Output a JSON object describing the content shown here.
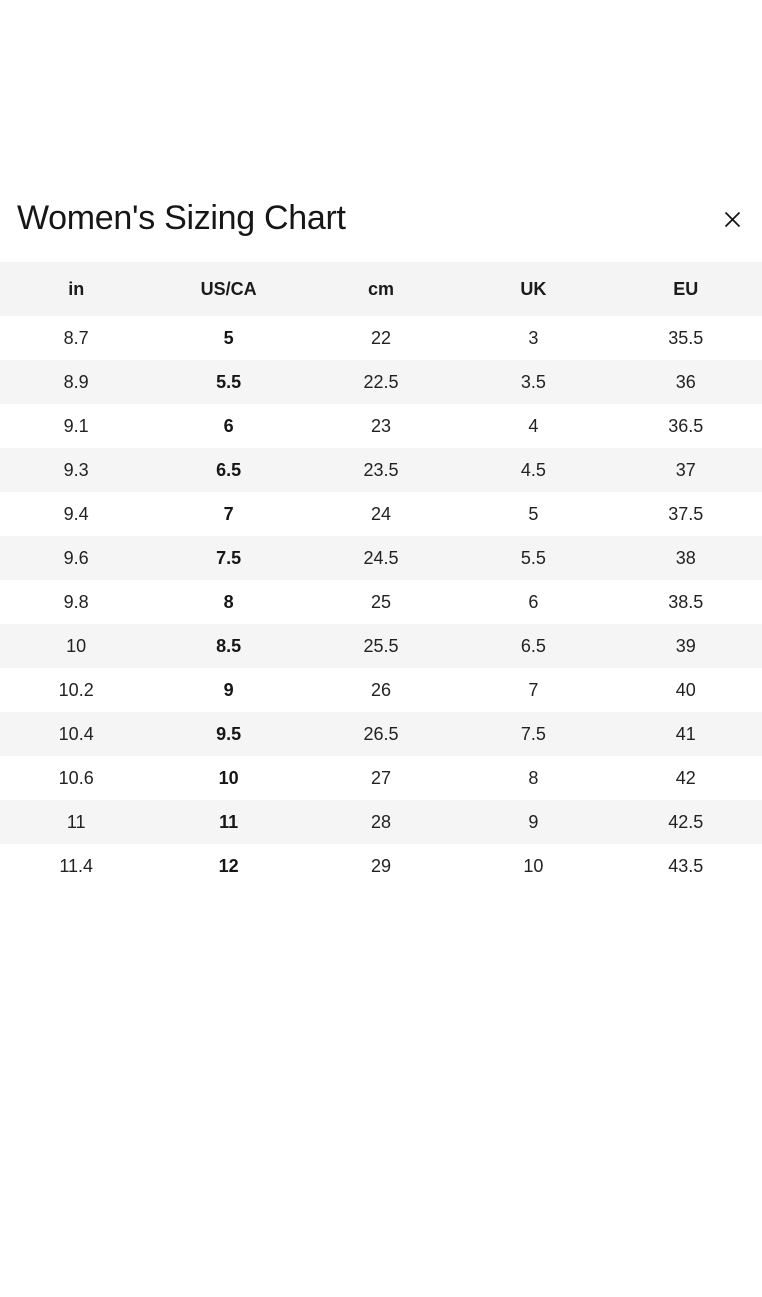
{
  "modal": {
    "title": "Women's Sizing Chart"
  },
  "table": {
    "columns": [
      "in",
      "US/CA",
      "cm",
      "UK",
      "EU"
    ],
    "bold_column_index": 1,
    "rows": [
      [
        "8.7",
        "5",
        "22",
        "3",
        "35.5"
      ],
      [
        "8.9",
        "5.5",
        "22.5",
        "3.5",
        "36"
      ],
      [
        "9.1",
        "6",
        "23",
        "4",
        "36.5"
      ],
      [
        "9.3",
        "6.5",
        "23.5",
        "4.5",
        "37"
      ],
      [
        "9.4",
        "7",
        "24",
        "5",
        "37.5"
      ],
      [
        "9.6",
        "7.5",
        "24.5",
        "5.5",
        "38"
      ],
      [
        "9.8",
        "8",
        "25",
        "6",
        "38.5"
      ],
      [
        "10",
        "8.5",
        "25.5",
        "6.5",
        "39"
      ],
      [
        "10.2",
        "9",
        "26",
        "7",
        "40"
      ],
      [
        "10.4",
        "9.5",
        "26.5",
        "7.5",
        "41"
      ],
      [
        "10.6",
        "10",
        "27",
        "8",
        "42"
      ],
      [
        "11",
        "11",
        "28",
        "9",
        "42.5"
      ],
      [
        "11.4",
        "12",
        "29",
        "10",
        "43.5"
      ]
    ]
  },
  "colors": {
    "header_bg": "#f4f4f5",
    "stripe_bg": "#f5f5f6",
    "text": "#1e1e1e",
    "background": "#ffffff"
  },
  "icons": {
    "close": "x-close-icon"
  }
}
